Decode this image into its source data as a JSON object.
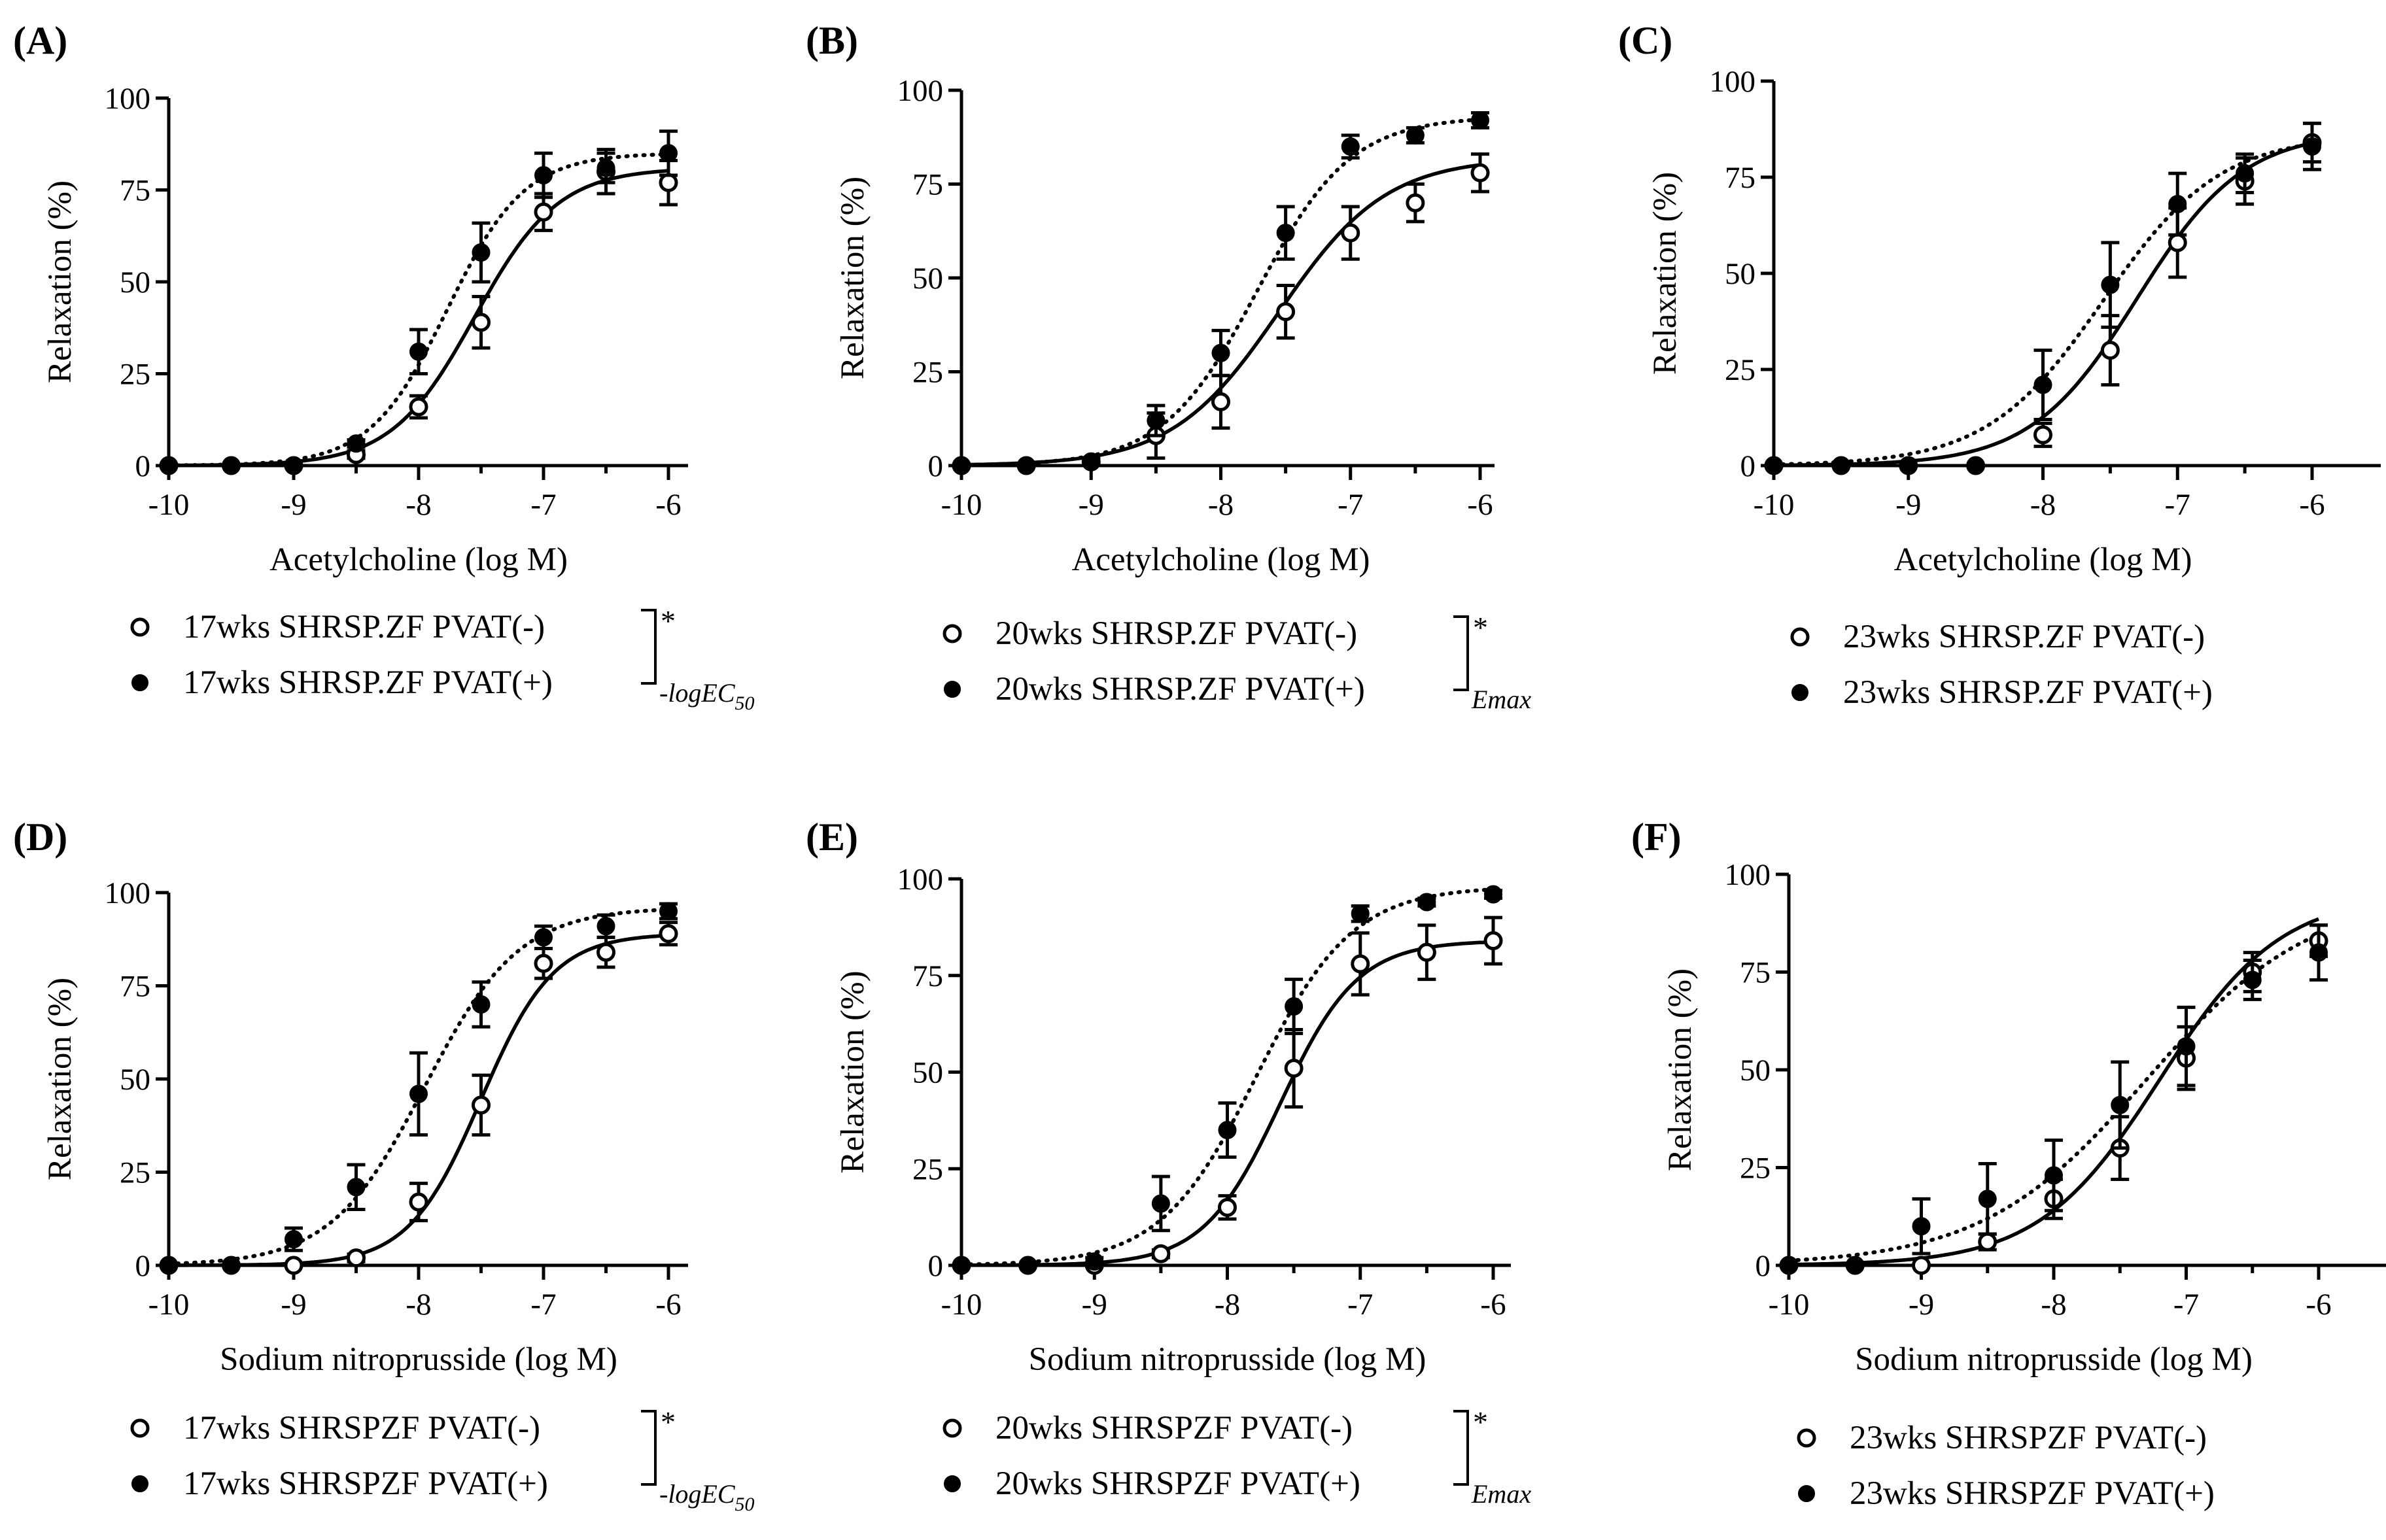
{
  "chart_data": [
    {
      "type": "line",
      "panel_label": "(A)",
      "xlabel": "Acetylcholine (log M)",
      "ylabel": "Relaxation (%)",
      "xlim": [
        -10,
        -6
      ],
      "ylim": [
        0,
        100
      ],
      "x_ticks": [
        "-10",
        "-9",
        "-8",
        "-7",
        "-6"
      ],
      "y_ticks": [
        "0",
        "25",
        "50",
        "75",
        "100"
      ],
      "x": [
        -10,
        -9.5,
        -9,
        -8.5,
        -8,
        -7.5,
        -7,
        -6.5,
        -6
      ],
      "series": [
        {
          "name": "17wks SHRSP.ZF PVAT(-)",
          "marker": "open",
          "line": "solid",
          "values": [
            0,
            0,
            0,
            3,
            16,
            39,
            69,
            80,
            77
          ],
          "errors": [
            0,
            0,
            0,
            1,
            3,
            7,
            5,
            6,
            6
          ],
          "fit": {
            "bottom": 0,
            "top": 81,
            "logEC50": -7.55,
            "hill": 1.3
          }
        },
        {
          "name": "17wks SHRSP.ZF PVAT(+)",
          "marker": "filled",
          "line": "dotted",
          "values": [
            0,
            0,
            0,
            6,
            31,
            58,
            79,
            81,
            85
          ],
          "errors": [
            0,
            0,
            0,
            1,
            6,
            8,
            6,
            4,
            6
          ],
          "fit": {
            "bottom": 0,
            "top": 85,
            "logEC50": -7.77,
            "hill": 1.4
          }
        }
      ],
      "bracket_label": "*",
      "bracket_sub": "-logEC",
      "bracket_subsub": "50"
    },
    {
      "type": "line",
      "panel_label": "(B)",
      "xlabel": "Acetylcholine (log M)",
      "ylabel": "Relaxation (%)",
      "xlim": [
        -10,
        -6
      ],
      "ylim": [
        0,
        100
      ],
      "x_ticks": [
        "-10",
        "-9",
        "-8",
        "-7",
        "-6"
      ],
      "y_ticks": [
        "0",
        "25",
        "50",
        "75",
        "100"
      ],
      "x": [
        -10,
        -9.5,
        -9,
        -8.5,
        -8,
        -7.5,
        -7,
        -6.5,
        -6
      ],
      "series": [
        {
          "name": "20wks SHRSP.ZF PVAT(-)",
          "marker": "open",
          "line": "solid",
          "values": [
            0,
            0,
            1,
            8,
            17,
            41,
            62,
            70,
            78
          ],
          "errors": [
            0,
            0,
            1,
            6,
            7,
            7,
            7,
            5,
            5
          ],
          "fit": {
            "bottom": 0,
            "top": 82,
            "logEC50": -7.55,
            "hill": 1.05
          }
        },
        {
          "name": "20wks SHRSP.ZF PVAT(+)",
          "marker": "filled",
          "line": "dotted",
          "values": [
            0,
            0,
            1,
            12,
            30,
            62,
            85,
            88,
            92
          ],
          "errors": [
            0,
            0,
            1,
            4,
            6,
            7,
            3,
            2,
            2
          ],
          "fit": {
            "bottom": 0,
            "top": 93,
            "logEC50": -7.72,
            "hill": 1.2
          }
        }
      ],
      "bracket_label": "*",
      "bracket_sub": "Emax",
      "bracket_subsub": ""
    },
    {
      "type": "line",
      "panel_label": "(C)",
      "xlabel": "Acetylcholine (log M)",
      "ylabel": "Relaxation (%)",
      "xlim": [
        -10,
        -6
      ],
      "ylim": [
        0,
        100
      ],
      "x_ticks": [
        "-10",
        "-9",
        "-8",
        "-7",
        "-6"
      ],
      "y_ticks": [
        "0",
        "25",
        "50",
        "75",
        "100"
      ],
      "x": [
        -10,
        -9.5,
        -9,
        -8.5,
        -8,
        -7.5,
        -7,
        -6.5,
        -6
      ],
      "series": [
        {
          "name": "23wks SHRSP.ZF PVAT(-)",
          "marker": "open",
          "line": "solid",
          "values": [
            0,
            0,
            0,
            0,
            8,
            30,
            58,
            74,
            84
          ],
          "errors": [
            0,
            0,
            0,
            0,
            3,
            9,
            9,
            6,
            5
          ],
          "fit": {
            "bottom": 0,
            "top": 87,
            "logEC50": -7.3,
            "hill": 1.1
          }
        },
        {
          "name": "23wks SHRSP.ZF PVAT(+)",
          "marker": "filled",
          "line": "dotted",
          "values": [
            0,
            0,
            0,
            0,
            21,
            47,
            68,
            76,
            83
          ],
          "errors": [
            0,
            0,
            0,
            0,
            9,
            11,
            8,
            5,
            6
          ],
          "fit": {
            "bottom": 0,
            "top": 86,
            "logEC50": -7.55,
            "hill": 1.0
          }
        }
      ],
      "bracket_label": "",
      "bracket_sub": "",
      "bracket_subsub": ""
    },
    {
      "type": "line",
      "panel_label": "(D)",
      "xlabel": "Sodium nitroprusside (log M)",
      "ylabel": "Relaxation (%)",
      "xlim": [
        -10,
        -6
      ],
      "ylim": [
        0,
        100
      ],
      "x_ticks": [
        "-10",
        "-9",
        "-8",
        "-7",
        "-6"
      ],
      "y_ticks": [
        "0",
        "25",
        "50",
        "75",
        "100"
      ],
      "x": [
        -10,
        -9.5,
        -9,
        -8.5,
        -8,
        -7.5,
        -7,
        -6.5,
        -6
      ],
      "series": [
        {
          "name": "17wks SHRSPZF PVAT(-)",
          "marker": "open",
          "line": "solid",
          "values": [
            0,
            0,
            0,
            2,
            17,
            43,
            81,
            84,
            89
          ],
          "errors": [
            0,
            0,
            0,
            1,
            5,
            8,
            4,
            4,
            3
          ],
          "fit": {
            "bottom": 0,
            "top": 89,
            "logEC50": -7.5,
            "hill": 1.5
          }
        },
        {
          "name": "17wks SHRSPZF PVAT(+)",
          "marker": "filled",
          "line": "dotted",
          "values": [
            0,
            0,
            7,
            21,
            46,
            70,
            88,
            91,
            95
          ],
          "errors": [
            0,
            0,
            3,
            6,
            11,
            6,
            3,
            3,
            2
          ],
          "fit": {
            "bottom": 0,
            "top": 96,
            "logEC50": -7.95,
            "hill": 1.15
          }
        }
      ],
      "bracket_label": "*",
      "bracket_sub": "-logEC",
      "bracket_subsub": "50"
    },
    {
      "type": "line",
      "panel_label": "(E)",
      "xlabel": "Sodium nitroprusside (log M)",
      "ylabel": "Relaxation (%)",
      "xlim": [
        -10,
        -6
      ],
      "ylim": [
        0,
        100
      ],
      "x_ticks": [
        "-10",
        "-9",
        "-8",
        "-7",
        "-6"
      ],
      "y_ticks": [
        "0",
        "25",
        "50",
        "75",
        "100"
      ],
      "x": [
        -10,
        -9.5,
        -9,
        -8.5,
        -8,
        -7.5,
        -7,
        -6.5,
        -6
      ],
      "series": [
        {
          "name": "20wks SHRSPZF PVAT(-)",
          "marker": "open",
          "line": "solid",
          "values": [
            0,
            0,
            0,
            3,
            15,
            51,
            78,
            81,
            84
          ],
          "errors": [
            0,
            0,
            0,
            1,
            3,
            10,
            8,
            7,
            6
          ],
          "fit": {
            "bottom": 0,
            "top": 84,
            "logEC50": -7.6,
            "hill": 1.5
          }
        },
        {
          "name": "20wks SHRSPZF PVAT(+)",
          "marker": "filled",
          "line": "dotted",
          "values": [
            0,
            0,
            1,
            16,
            35,
            67,
            91,
            94,
            96
          ],
          "errors": [
            0,
            0,
            1,
            7,
            7,
            7,
            2,
            1,
            1
          ],
          "fit": {
            "bottom": 0,
            "top": 98,
            "logEC50": -7.78,
            "hill": 1.2
          }
        }
      ],
      "bracket_label": "*",
      "bracket_sub": "Emax",
      "bracket_subsub": ""
    },
    {
      "type": "line",
      "panel_label": "(F)",
      "xlabel": "Sodium nitroprusside (log M)",
      "ylabel": "Relaxation (%)",
      "xlim": [
        -10,
        -6
      ],
      "ylim": [
        0,
        100
      ],
      "x_ticks": [
        "-10",
        "-9",
        "-8",
        "-7",
        "-6"
      ],
      "y_ticks": [
        "0",
        "25",
        "50",
        "75",
        "100"
      ],
      "x": [
        -10,
        -9.5,
        -9,
        -8.5,
        -8,
        -7.5,
        -7,
        -6.5,
        -6
      ],
      "series": [
        {
          "name": "23wks SHRSPZF PVAT(-)",
          "marker": "open",
          "line": "solid",
          "values": [
            0,
            0,
            0,
            6,
            17,
            30,
            53,
            75,
            83
          ],
          "errors": [
            0,
            0,
            0,
            2,
            5,
            8,
            8,
            5,
            4
          ],
          "fit": {
            "bottom": 0,
            "top": 95,
            "logEC50": -7.2,
            "hill": 0.95
          }
        },
        {
          "name": "23wks SHRSPZF PVAT(+)",
          "marker": "filled",
          "line": "dotted",
          "values": [
            0,
            0,
            10,
            17,
            23,
            41,
            56,
            73,
            80
          ],
          "errors": [
            0,
            0,
            7,
            9,
            9,
            11,
            10,
            5,
            7
          ],
          "fit": {
            "bottom": 0,
            "top": 95,
            "logEC50": -7.3,
            "hill": 0.7
          }
        }
      ],
      "bracket_label": "",
      "bracket_sub": "",
      "bracket_subsub": ""
    }
  ]
}
